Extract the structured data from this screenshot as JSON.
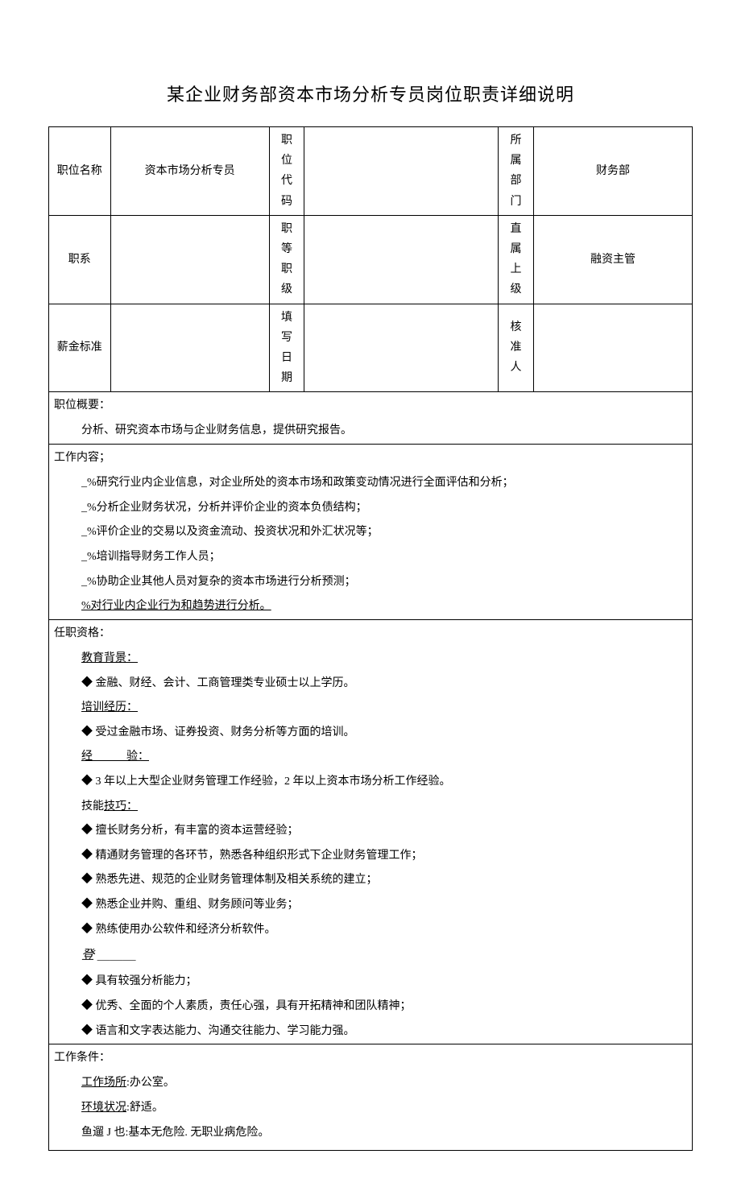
{
  "title": "某企业财务部资本市场分析专员岗位职责详细说明",
  "header": {
    "position_name_label": "职位名称",
    "position_name_value": "资本市场分析专员",
    "position_code_label": "职位代码",
    "position_code_value": "",
    "department_label": "所属部门",
    "department_value": "财务部",
    "job_series_label": "职系",
    "job_series_value": "",
    "job_grade_label": "职等职级",
    "job_grade_value": "",
    "supervisor_label": "直属上级",
    "supervisor_value": "融资主管",
    "salary_label": "薪金标准",
    "salary_value": "",
    "fill_date_label": "填写日期",
    "fill_date_value": "",
    "approver_label": "核准人",
    "approver_value": ""
  },
  "overview": {
    "label": "职位概要：",
    "content": "分析、研究资本市场与企业财务信息，提供研究报告。"
  },
  "work_content": {
    "label": "工作内容；",
    "items": [
      "_%研究行业内企业信息，对企业所处的资本市场和政策变动情况进行全面评估和分析；",
      "_%分析企业财务状况，分析并评价企业的资本负债结构；",
      "_%评价企业的交易以及资金流动、投资状况和外汇状况等；",
      "_%培训指导财务工作人员；",
      "_%协助企业其他人员对复杂的资本市场进行分析预测；",
      "%对行业内企业行为和趋势进行分析。"
    ]
  },
  "qualifications": {
    "label": "任职资格：",
    "education_label": "教育背景：",
    "education_item": "◆ 金融、财经、会计、工商管理类专业硕士以上学历。",
    "training_label": "培训经历：",
    "training_item": "◆ 受过金融市场、证券投资、财务分析等方面的培训。",
    "experience_label": "经　　　验：",
    "experience_item": "◆ 3 年以上大型企业财务管理工作经验，2 年以上资本市场分析工作经验。",
    "skills_label": "技能技巧：",
    "skills_items": [
      "◆ 擅长财务分析，有丰富的资本运营经验；",
      "◆ 精通财务管理的各环节，熟悉各种组织形式下企业财务管理工作；",
      "◆ 熟悉先进、规范的企业财务管理体制及相关系统的建立；",
      "◆ 熟悉企业并购、重组、财务顾问等业务；",
      "◆ 熟练使用办公软件和经济分析软件。"
    ],
    "attitude_label": "登",
    "attitude_items": [
      "◆ 具有较强分析能力；",
      "◆ 优秀、全面的个人素质，责任心强，具有开拓精神和团队精神；",
      "◆ 语言和文字表达能力、沟通交往能力、学习能力强。"
    ]
  },
  "conditions": {
    "label": "工作条件：",
    "workplace_label": "工作场所",
    "workplace_value": ":办公室。",
    "environment_label": "环境状况",
    "environment_value": ":舒适。",
    "danger_label": "鱼遛 J 也",
    "danger_value": ":基本无危险. 无职业病危险。"
  },
  "styling": {
    "background_color": "#ffffff",
    "text_color": "#000000",
    "border_color": "#000000",
    "title_fontsize": 22,
    "body_fontsize": 14,
    "font_family": "SimSun"
  }
}
